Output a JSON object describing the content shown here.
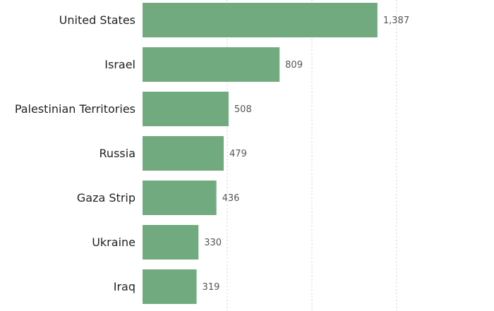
{
  "chart_data": {
    "type": "bar",
    "orientation": "horizontal",
    "categories": [
      "United States",
      "Israel",
      "Palestinian Territories",
      "Russia",
      "Gaza Strip",
      "Ukraine",
      "Iraq"
    ],
    "values": [
      1387,
      809,
      508,
      479,
      436,
      330,
      319
    ],
    "value_labels": [
      "1,387",
      "809",
      "508",
      "479",
      "436",
      "330",
      "319"
    ],
    "xlim": [
      0,
      1800
    ],
    "grid_values": [
      500,
      1000,
      1500
    ],
    "grid": true,
    "bar_color": "#72aa80",
    "title": "",
    "xlabel": "",
    "ylabel": ""
  }
}
